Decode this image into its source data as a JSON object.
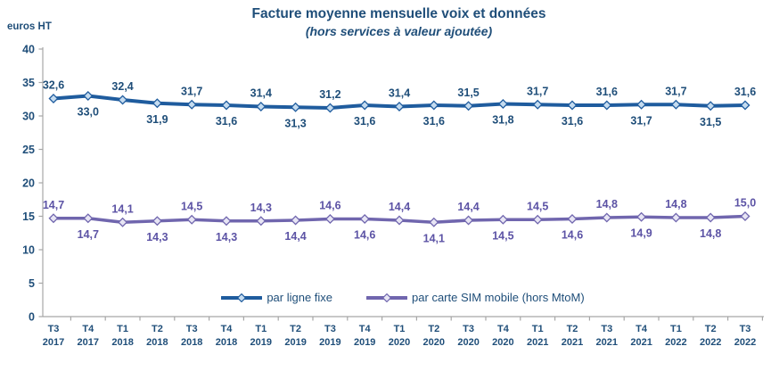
{
  "header": {
    "title": "Facture moyenne mensuelle voix et données",
    "subtitle": "(hors services à valeur ajoutée)",
    "unit_label": "euros HT"
  },
  "chart_data": {
    "type": "line",
    "title": "Facture moyenne mensuelle voix et données",
    "subtitle": "(hors services à valeur ajoutée)",
    "ylabel": "euros HT",
    "xlabel": "",
    "ylim": [
      0,
      40
    ],
    "ytick_step": 5,
    "grid": false,
    "legend_position": "bottom-center",
    "decimal_separator": ",",
    "axis_color": "#A6A6A6",
    "tick_label_color": "#1F4E79",
    "categories": [
      "T3 2017",
      "T4 2017",
      "T1 2018",
      "T2 2018",
      "T3 2018",
      "T4 2018",
      "T1 2019",
      "T2 2019",
      "T3 2019",
      "T4 2019",
      "T1 2020",
      "T2 2020",
      "T3 2020",
      "T4 2020",
      "T1 2021",
      "T2 2021",
      "T3 2021",
      "T4 2021",
      "T1 2022",
      "T2 2022",
      "T3 2022"
    ],
    "series": [
      {
        "name": "par ligne fixe",
        "color": "#1F5C9E",
        "marker": "diamond",
        "marker_fill": "#C5DCF0",
        "label_color": "#1F4E79",
        "values": [
          32.6,
          33.0,
          32.4,
          31.9,
          31.7,
          31.6,
          31.4,
          31.3,
          31.2,
          31.6,
          31.4,
          31.6,
          31.5,
          31.8,
          31.7,
          31.6,
          31.6,
          31.7,
          31.7,
          31.5,
          31.6
        ]
      },
      {
        "name": "par carte SIM mobile (hors MtoM)",
        "color": "#7066AE",
        "marker": "diamond",
        "marker_fill": "#E7E5F4",
        "label_color": "#5C53A5",
        "values": [
          14.7,
          14.7,
          14.1,
          14.3,
          14.5,
          14.3,
          14.3,
          14.4,
          14.6,
          14.6,
          14.4,
          14.1,
          14.4,
          14.5,
          14.5,
          14.6,
          14.8,
          14.9,
          14.8,
          14.8,
          15.0
        ]
      }
    ],
    "data_label_pattern": "alternating, even indices above the line, odd indices below"
  }
}
